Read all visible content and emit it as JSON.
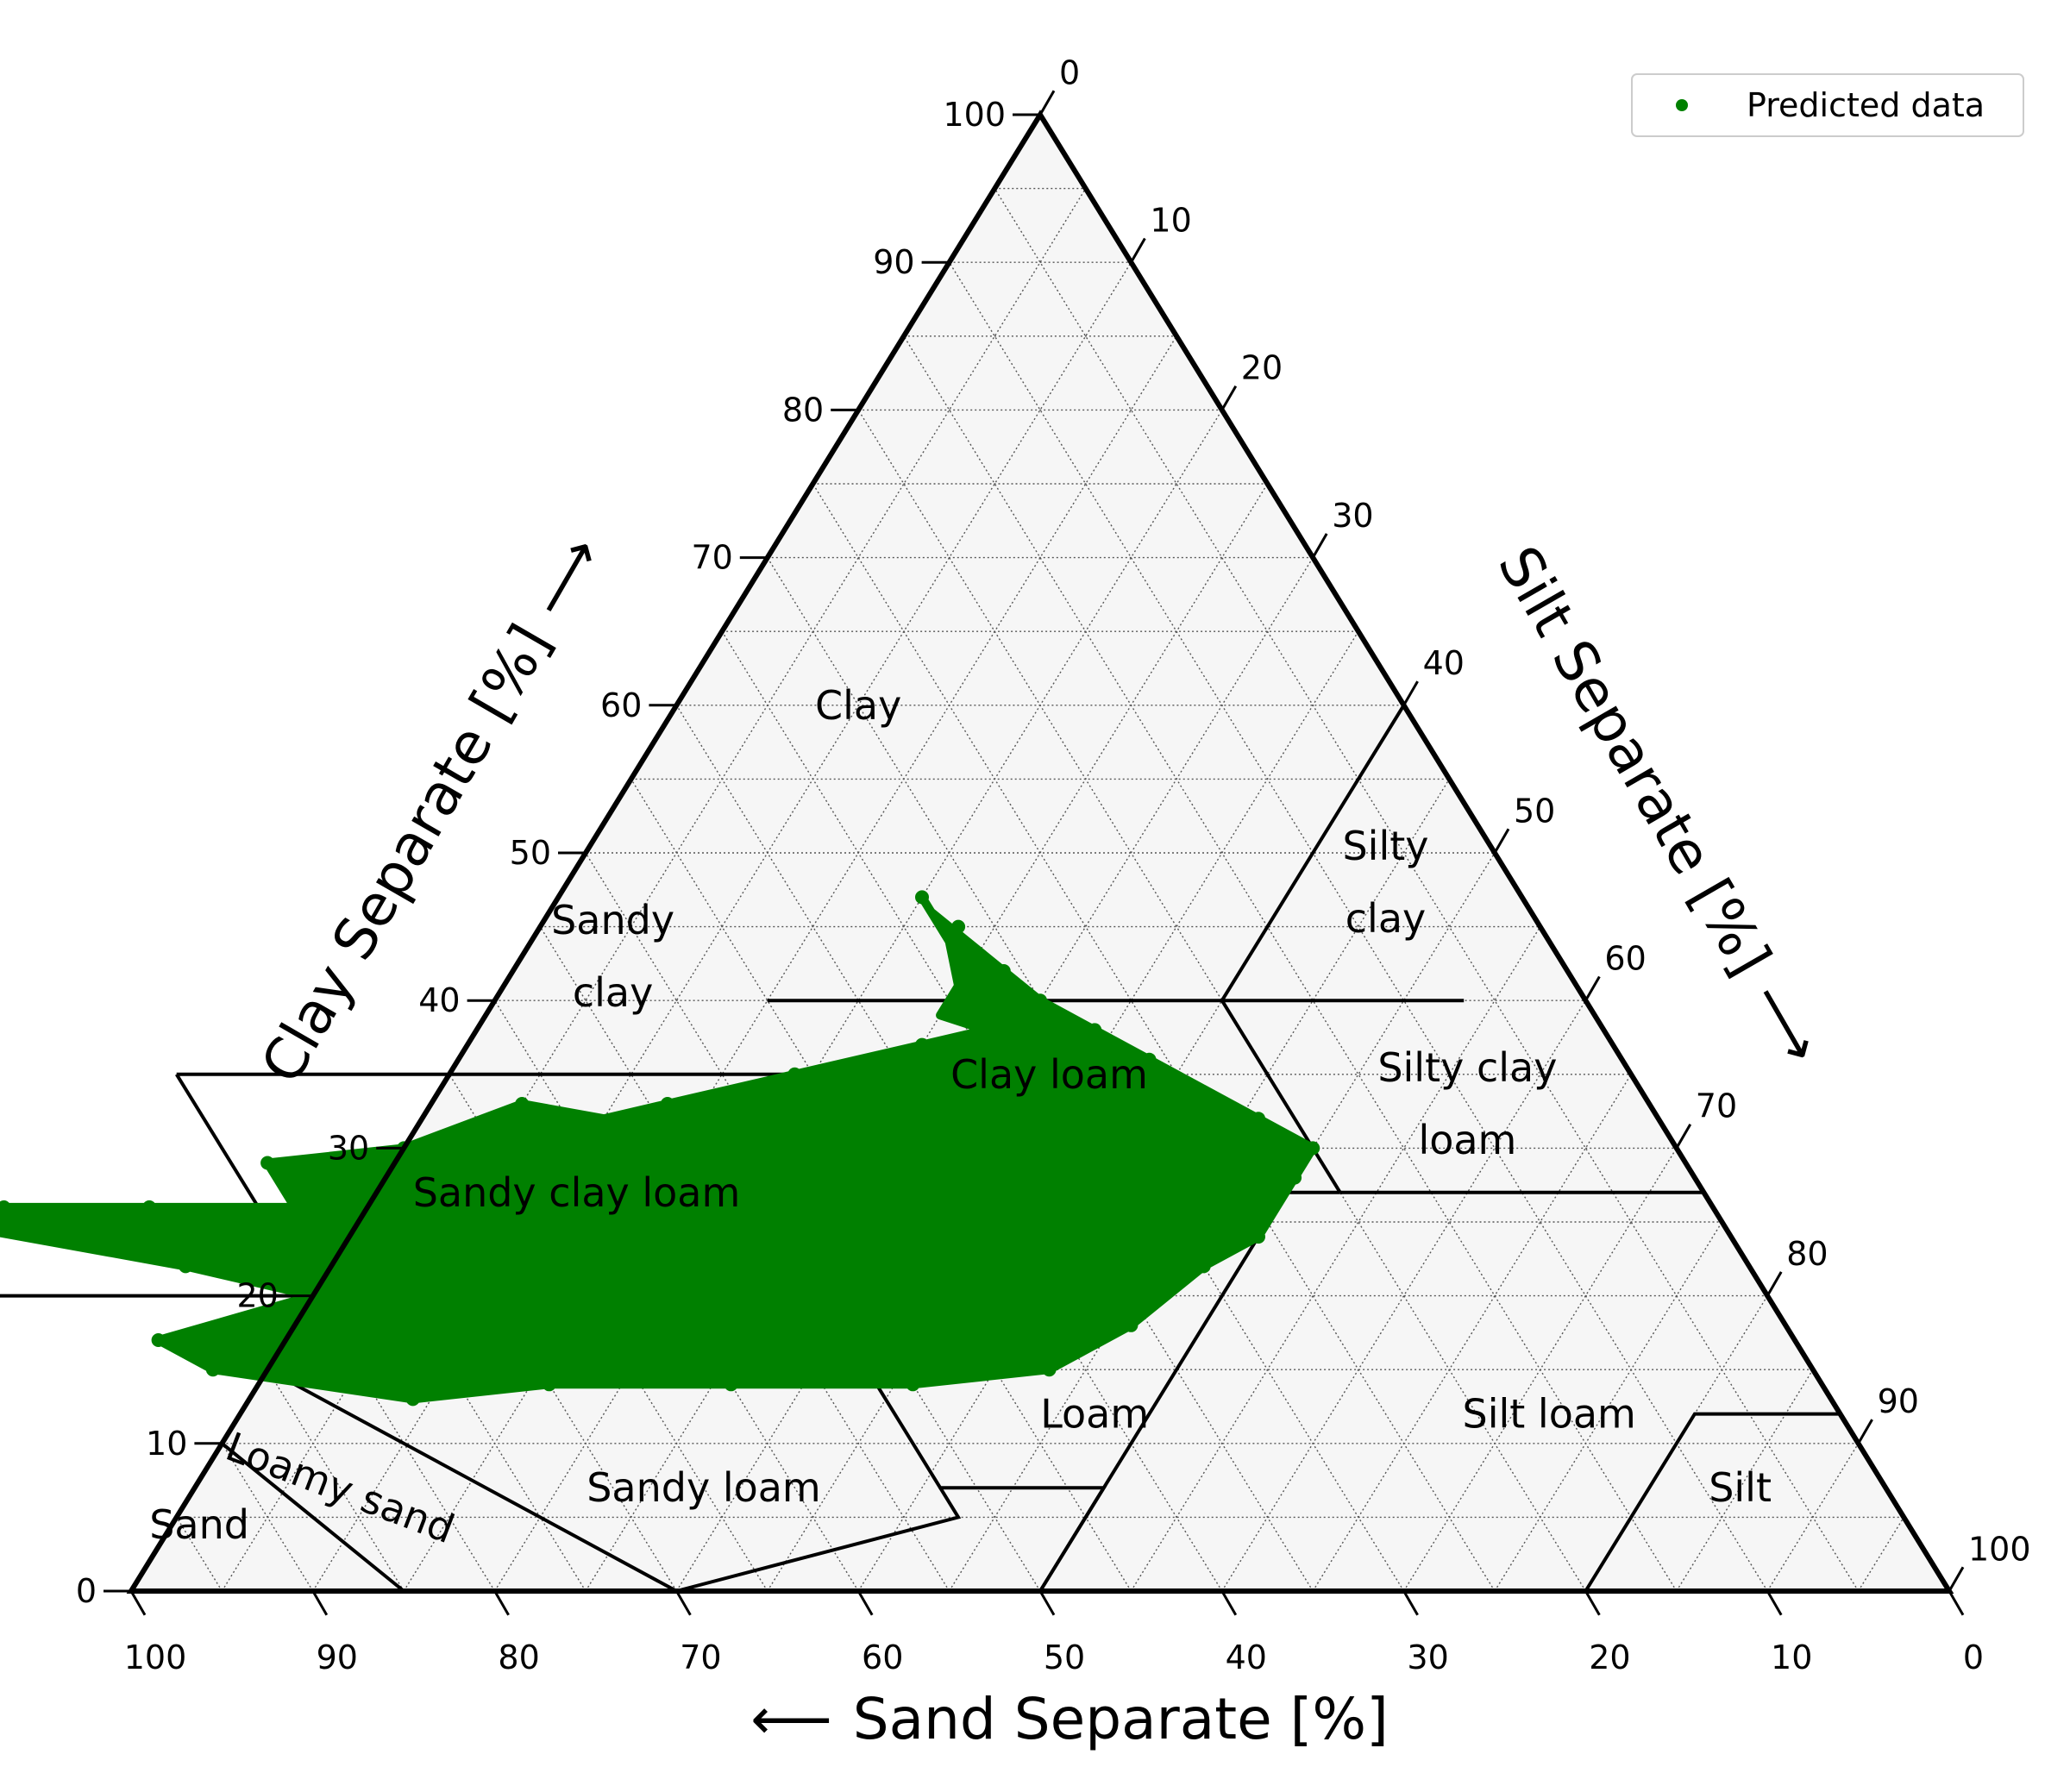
{
  "chart_data": {
    "type": "ternary-scatter",
    "axes": {
      "sand": {
        "label": "Sand Separate [%]",
        "arrow": "⟵",
        "range": [
          0,
          100
        ],
        "ticks": [
          100,
          90,
          80,
          70,
          60,
          50,
          40,
          30,
          20,
          10,
          0
        ]
      },
      "clay": {
        "label": "Clay Separate [%]",
        "arrow": "⟶",
        "range": [
          0,
          100
        ],
        "ticks": [
          0,
          10,
          20,
          30,
          40,
          50,
          60,
          70,
          80,
          90,
          100
        ]
      },
      "silt": {
        "label": "Silt Separate [%]",
        "arrow": "⟶",
        "range": [
          0,
          100
        ],
        "ticks": [
          0,
          10,
          20,
          30,
          40,
          50,
          60,
          70,
          80,
          90,
          100
        ]
      }
    },
    "grid": true,
    "grid_step": 5,
    "legend": {
      "placement": "top-right",
      "entries": [
        {
          "name": "Predicted data",
          "color": "#008000"
        }
      ]
    },
    "series": [
      {
        "name": "Predicted data",
        "color": "#008000",
        "region_outline_sand_clay": [
          [
            33,
            47
          ],
          [
            33,
            46
          ],
          [
            32,
            44
          ],
          [
            31,
            42
          ],
          [
            30,
            40
          ],
          [
            28,
            38
          ],
          [
            26,
            36
          ],
          [
            24,
            34
          ],
          [
            22,
            32
          ],
          [
            20,
            30
          ],
          [
            22,
            28
          ],
          [
            24,
            26
          ],
          [
            26,
            24
          ],
          [
            30,
            22
          ],
          [
            36,
            18
          ],
          [
            40,
            16
          ],
          [
            42,
            15
          ],
          [
            50,
            14
          ],
          [
            60,
            14
          ],
          [
            70,
            14
          ],
          [
            78,
            13
          ],
          [
            88,
            15
          ],
          [
            90,
            17
          ],
          [
            80,
            20
          ],
          [
            86,
            22
          ],
          [
            98,
            25
          ],
          [
            94,
            26
          ],
          [
            86,
            26
          ],
          [
            78,
            26
          ],
          [
            78,
            29
          ],
          [
            70,
            30
          ],
          [
            62,
            33
          ],
          [
            58,
            32
          ],
          [
            54,
            33
          ],
          [
            46,
            35
          ],
          [
            38,
            37
          ],
          [
            34,
            38
          ],
          [
            36,
            39
          ],
          [
            34,
            41
          ],
          [
            33,
            44
          ],
          [
            33,
            47
          ]
        ],
        "sample_points_sand_clay": [
          [
            33,
            47
          ],
          [
            32,
            45
          ],
          [
            31,
            42
          ],
          [
            30,
            40
          ],
          [
            28,
            38
          ],
          [
            34,
            38
          ],
          [
            38,
            37
          ],
          [
            46,
            35
          ],
          [
            54,
            33
          ],
          [
            62,
            33
          ],
          [
            70,
            30
          ],
          [
            78,
            29
          ],
          [
            78,
            26
          ],
          [
            86,
            26
          ],
          [
            94,
            26
          ],
          [
            98,
            25
          ],
          [
            86,
            22
          ],
          [
            80,
            20
          ],
          [
            90,
            17
          ],
          [
            88,
            15
          ],
          [
            78,
            13
          ],
          [
            70,
            14
          ],
          [
            60,
            14
          ],
          [
            50,
            14
          ],
          [
            42,
            15
          ],
          [
            36,
            18
          ],
          [
            30,
            22
          ],
          [
            26,
            24
          ],
          [
            22,
            28
          ],
          [
            20,
            30
          ],
          [
            22,
            32
          ],
          [
            26,
            36
          ]
        ]
      }
    ],
    "regions": [
      {
        "name": "Clay",
        "lines": [
          "Clay"
        ],
        "label_at": [
          30,
          60
        ]
      },
      {
        "name": "Sandy clay",
        "lines": [
          "Sandy",
          "clay"
        ],
        "label_at": [
          52,
          43
        ]
      },
      {
        "name": "Silty clay",
        "lines": [
          "Silty",
          "clay"
        ],
        "label_at": [
          7,
          48
        ]
      },
      {
        "name": "Clay loam",
        "lines": [
          "Clay loam"
        ],
        "label_at": [
          32,
          35
        ]
      },
      {
        "name": "Silty clay loam",
        "lines": [
          "Silty clay",
          "loam"
        ],
        "label_at": [
          10,
          33
        ]
      },
      {
        "name": "Sandy clay loam",
        "lines": [
          "Sandy clay loam"
        ],
        "label_at": [
          62,
          27
        ]
      },
      {
        "name": "Loam",
        "lines": [
          "Loam"
        ],
        "label_at": [
          41,
          12
        ]
      },
      {
        "name": "Silt loam",
        "lines": [
          "Silt loam"
        ],
        "label_at": [
          16,
          12
        ]
      },
      {
        "name": "Sandy loam",
        "lines": [
          "Sandy loam"
        ],
        "label_at": [
          65,
          7
        ]
      },
      {
        "name": "Loamy sand",
        "lines": [
          "Loamy sand"
        ],
        "label_at": [
          85,
          7
        ],
        "rotate": 21
      },
      {
        "name": "Sand",
        "lines": [
          "Sand"
        ],
        "label_at": [
          94,
          4.5
        ]
      },
      {
        "name": "Silt",
        "lines": [
          "Silt"
        ],
        "label_at": [
          8,
          7
        ]
      }
    ],
    "boundaries_sand_clay": [
      [
        [
          45,
          55
        ],
        [
          65,
          35
        ]
      ],
      [
        [
          65,
          35
        ],
        [
          45,
          35
        ]
      ],
      [
        [
          45,
          40
        ],
        [
          20,
          40
        ]
      ],
      [
        [
          20,
          40
        ],
        [
          0,
          60
        ]
      ],
      [
        [
          20,
          40
        ],
        [
          20,
          27
        ]
      ],
      [
        [
          20,
          40
        ],
        [
          6.7,
          40
        ]
      ],
      [
        [
          20,
          27
        ],
        [
          45,
          27
        ]
      ],
      [
        [
          20,
          27
        ],
        [
          0,
          27
        ]
      ],
      [
        [
          65,
          35
        ],
        [
          80,
          35
        ]
      ],
      [
        [
          80,
          35
        ],
        [
          80,
          20
        ]
      ],
      [
        [
          80,
          20
        ],
        [
          100,
          20
        ]
      ],
      [
        [
          80,
          20
        ],
        [
          85,
          15
        ]
      ],
      [
        [
          85,
          15
        ],
        [
          90,
          10
        ]
      ],
      [
        [
          45,
          27
        ],
        [
          45,
          20
        ],
        [
          52,
          20
        ],
        [
          52,
          7
        ],
        [
          43,
          7
        ],
        [
          50,
          0
        ]
      ],
      [
        [
          52,
          7
        ],
        [
          52,
          5
        ],
        [
          70,
          0
        ]
      ],
      [
        [
          45,
          27
        ],
        [
          52,
          20
        ]
      ],
      [
        [
          90,
          10
        ],
        [
          100,
          0
        ]
      ],
      [
        [
          85,
          15
        ],
        [
          70,
          0
        ]
      ],
      [
        [
          90,
          10
        ],
        [
          85,
          0
        ]
      ],
      [
        [
          50,
          0
        ],
        [
          23,
          27
        ]
      ],
      [
        [
          20,
          0
        ],
        [
          8,
          12
        ],
        [
          0,
          12
        ]
      ]
    ]
  }
}
